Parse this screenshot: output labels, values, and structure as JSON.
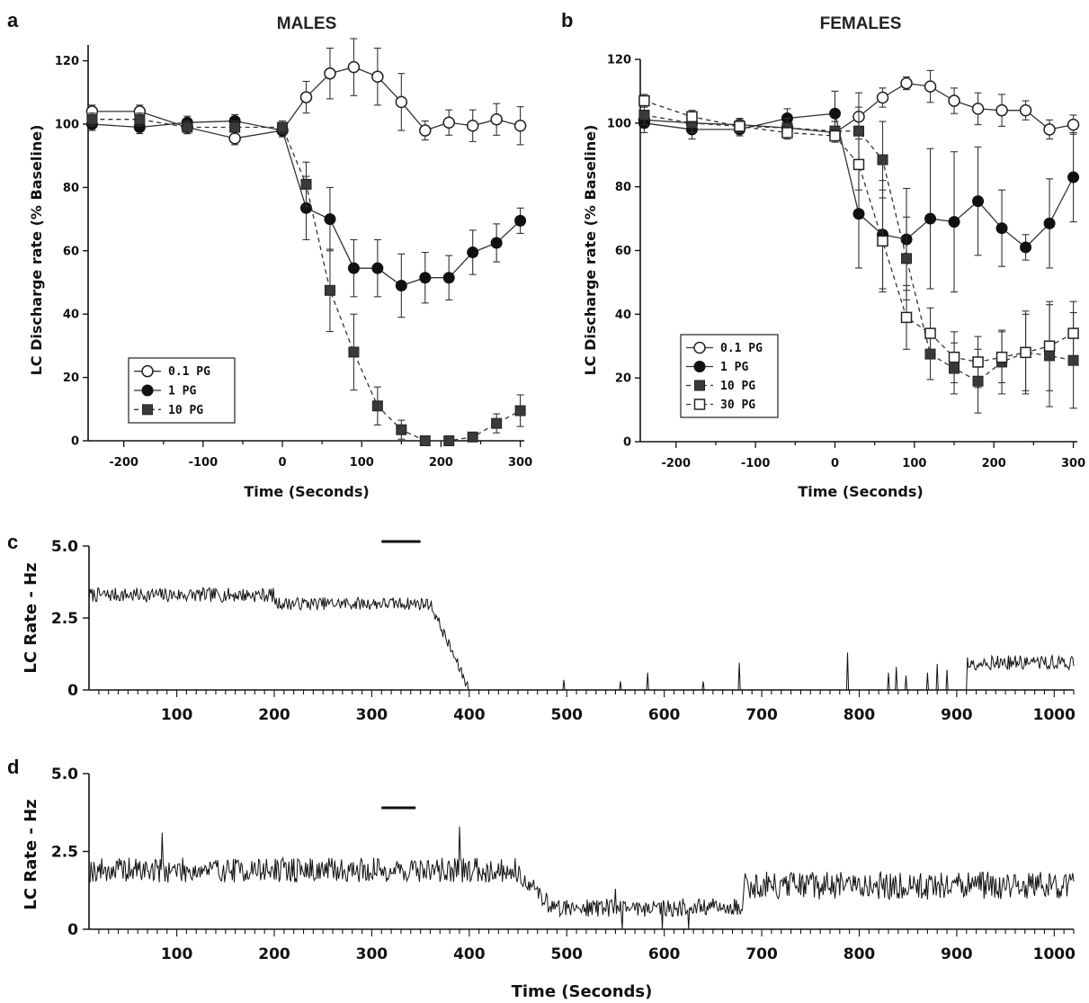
{
  "chart_data": [
    {
      "panel": "a",
      "type": "line",
      "title": "MALES",
      "xlabel": "Time (Seconds)",
      "ylabel": "LC Discharge rate (% Baseline)",
      "xlim": [
        -245,
        305
      ],
      "ylim": [
        0,
        125
      ],
      "xticks": [
        -200,
        -100,
        0,
        100,
        200,
        300
      ],
      "yticks": [
        0,
        20,
        40,
        60,
        80,
        100,
        120
      ],
      "legend_position": "lower-left",
      "series": [
        {
          "name": "0.1 PG",
          "marker": "circle-open",
          "dash": "solid",
          "x": [
            -240,
            -180,
            -120,
            -60,
            0,
            30,
            60,
            90,
            120,
            150,
            180,
            210,
            240,
            270,
            300
          ],
          "y": [
            104,
            104,
            99,
            95.5,
            98,
            108.5,
            116,
            118,
            115,
            107,
            98,
            100.5,
            99.5,
            101.5,
            99.5
          ],
          "err": [
            2,
            2,
            2,
            2,
            2,
            5,
            8,
            9,
            9,
            9,
            3,
            4,
            5,
            5,
            6
          ]
        },
        {
          "name": "1 PG",
          "marker": "circle-filled",
          "dash": "solid",
          "x": [
            -240,
            -180,
            -120,
            -60,
            0,
            30,
            60,
            90,
            120,
            150,
            180,
            210,
            240,
            270,
            300
          ],
          "y": [
            100,
            99,
            100.5,
            101,
            98,
            73.5,
            70,
            54.5,
            54.5,
            49,
            51.5,
            51.5,
            59.5,
            62.5,
            69.5
          ],
          "err": [
            2,
            2,
            2,
            2,
            2,
            10,
            10,
            9,
            9,
            10,
            8,
            7,
            7,
            6,
            4
          ]
        },
        {
          "name": "10 PG",
          "marker": "square-filled",
          "dash": "dashed",
          "x": [
            -240,
            -180,
            -120,
            -60,
            0,
            30,
            60,
            90,
            120,
            150,
            180,
            210,
            240,
            270,
            300
          ],
          "y": [
            101.5,
            101.5,
            99,
            99,
            99,
            81,
            47.5,
            28,
            11,
            3.5,
            0,
            0,
            1.2,
            5.5,
            9.5
          ],
          "err": [
            2,
            2,
            2,
            2,
            2,
            7,
            13,
            12,
            6,
            3,
            0,
            0,
            1,
            3,
            5
          ]
        }
      ]
    },
    {
      "panel": "b",
      "type": "line",
      "title": "FEMALES",
      "xlabel": "Time (Seconds)",
      "ylabel": "LC Discharge rate (% Baseline)",
      "xlim": [
        -245,
        305
      ],
      "ylim": [
        0,
        120
      ],
      "xticks": [
        -200,
        -100,
        0,
        100,
        200,
        300
      ],
      "yticks": [
        0,
        20,
        40,
        60,
        80,
        100,
        120
      ],
      "legend_position": "lower-left",
      "series": [
        {
          "name": "0.1 PG",
          "marker": "circle-open",
          "dash": "solid",
          "x": [
            -240,
            -180,
            -120,
            -60,
            0,
            30,
            60,
            90,
            120,
            150,
            180,
            210,
            240,
            270,
            300
          ],
          "y": [
            101,
            100,
            99.5,
            98.5,
            97,
            102,
            108,
            112.5,
            111.5,
            107,
            104.5,
            104,
            104,
            98,
            99.5
          ],
          "err": [
            2,
            2,
            2,
            2,
            2,
            3,
            3,
            2,
            5,
            4,
            5,
            5,
            3,
            3,
            3
          ]
        },
        {
          "name": "1 PG",
          "marker": "circle-filled",
          "dash": "solid",
          "x": [
            -240,
            -180,
            -120,
            -60,
            0,
            30,
            60,
            90,
            120,
            150,
            180,
            210,
            240,
            270,
            300
          ],
          "y": [
            100,
            98,
            98,
            101.5,
            103,
            71.5,
            65,
            63.5,
            70,
            69,
            75.5,
            67,
            61,
            68.5,
            83
          ],
          "err": [
            3,
            3,
            2,
            3,
            7,
            17,
            17,
            16,
            22,
            22,
            17,
            12,
            4,
            14,
            14
          ]
        },
        {
          "name": "10 PG",
          "marker": "square-filled",
          "dash": "dashed",
          "x": [
            -240,
            -180,
            -120,
            -60,
            0,
            30,
            60,
            90,
            120,
            150,
            180,
            210,
            240,
            270,
            300
          ],
          "y": [
            102.5,
            100,
            99,
            98.5,
            97.5,
            97.5,
            88.5,
            57.5,
            27.5,
            23,
            19,
            25,
            28,
            27,
            25.5
          ],
          "err": [
            3,
            3,
            2,
            3,
            3,
            12,
            12,
            13,
            8,
            8,
            10,
            10,
            13,
            16,
            15
          ]
        },
        {
          "name": "30 PG",
          "marker": "square-open",
          "dash": "dashed",
          "x": [
            -240,
            -180,
            -120,
            -60,
            0,
            30,
            60,
            90,
            120,
            150,
            180,
            210,
            240,
            270,
            300
          ],
          "y": [
            107,
            102,
            99,
            97,
            96,
            87,
            63,
            39,
            34,
            26.5,
            25,
            26.5,
            28,
            30,
            34
          ],
          "err": [
            2,
            2,
            2,
            2,
            2,
            8,
            16,
            10,
            8,
            8,
            8,
            8,
            12,
            14,
            10
          ]
        }
      ]
    },
    {
      "panel": "c",
      "type": "line",
      "ylabel": "LC Rate - Hz",
      "xlabel": "",
      "xlim": [
        10,
        1020
      ],
      "ylim": [
        0,
        5
      ],
      "xticks": [
        100,
        200,
        300,
        400,
        500,
        600,
        700,
        800,
        900,
        1000
      ],
      "yticks": [
        "0",
        "2.5",
        "5.0"
      ],
      "infusion_bar": [
        310,
        350
      ],
      "segments": [
        {
          "x": [
            10,
            200
          ],
          "base": 3.3,
          "noise": 0.25
        },
        {
          "x": [
            200,
            360
          ],
          "base": 3.0,
          "noise": 0.22
        },
        {
          "x": [
            360,
            400
          ],
          "from": 3.0,
          "to": 0.0,
          "noise": 0.2
        },
        {
          "x": [
            400,
            910
          ],
          "base": 0.0,
          "noise": 0.0
        },
        {
          "x": [
            910,
            1020
          ],
          "base": 0.95,
          "noise": 0.25
        }
      ],
      "spikes": [
        {
          "x": 497,
          "y": 0.35
        },
        {
          "x": 555,
          "y": 0.3
        },
        {
          "x": 583,
          "y": 0.6
        },
        {
          "x": 640,
          "y": 0.3
        },
        {
          "x": 677,
          "y": 0.95
        },
        {
          "x": 788,
          "y": 1.3
        },
        {
          "x": 830,
          "y": 0.6
        },
        {
          "x": 838,
          "y": 0.8
        },
        {
          "x": 848,
          "y": 0.5
        },
        {
          "x": 870,
          "y": 0.6
        },
        {
          "x": 880,
          "y": 0.9
        },
        {
          "x": 890,
          "y": 0.7
        }
      ]
    },
    {
      "panel": "d",
      "type": "line",
      "ylabel": "LC Rate - Hz",
      "xlabel": "Time (Seconds)",
      "xlim": [
        10,
        1020
      ],
      "ylim": [
        0,
        5
      ],
      "xticks": [
        100,
        200,
        300,
        400,
        500,
        600,
        700,
        800,
        900,
        1000
      ],
      "yticks": [
        "0",
        "2.5",
        "5.0"
      ],
      "infusion_bar": [
        310,
        345
      ],
      "segments": [
        {
          "x": [
            10,
            450
          ],
          "base": 1.9,
          "noise": 0.4
        },
        {
          "x": [
            450,
            480
          ],
          "from": 1.8,
          "to": 0.9,
          "noise": 0.3
        },
        {
          "x": [
            480,
            680
          ],
          "base": 0.7,
          "noise": 0.3
        },
        {
          "x": [
            680,
            1020
          ],
          "base": 1.4,
          "noise": 0.45
        }
      ],
      "spikes": [
        {
          "x": 85,
          "y": 3.1
        },
        {
          "x": 390,
          "y": 3.3
        },
        {
          "x": 550,
          "y": 1.3
        },
        {
          "x": 557,
          "y": 0.0
        },
        {
          "x": 598,
          "y": 0.0
        },
        {
          "x": 625,
          "y": 0.0
        }
      ]
    }
  ],
  "labels": {
    "a": "a",
    "b": "b",
    "c": "c",
    "d": "d"
  }
}
